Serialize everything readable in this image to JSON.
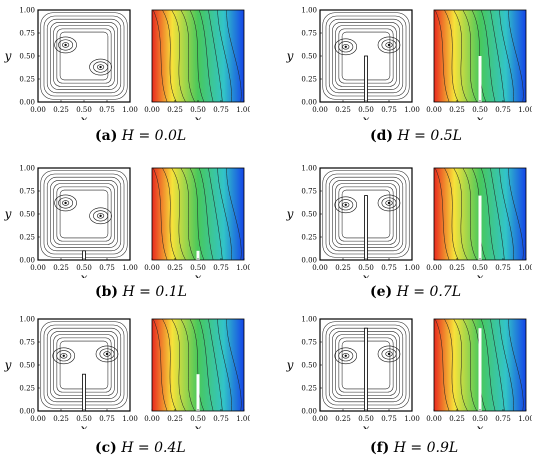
{
  "ticks": [
    "0.00",
    "0.25",
    "0.50",
    "0.75",
    "1.00"
  ],
  "xlabel": "x",
  "ylabel": "y",
  "panels": [
    {
      "id": "a",
      "label": "(a)",
      "var": "H",
      "eq": "=",
      "value": "0.0L",
      "baffle": 0.0
    },
    {
      "id": "b",
      "label": "(b)",
      "var": "H",
      "eq": "=",
      "value": "0.1L",
      "baffle": 0.1
    },
    {
      "id": "c",
      "label": "(c)",
      "var": "H",
      "eq": "=",
      "value": "0.4L",
      "baffle": 0.4
    },
    {
      "id": "d",
      "label": "(d)",
      "var": "H",
      "eq": "=",
      "value": "0.5L",
      "baffle": 0.5
    },
    {
      "id": "e",
      "label": "(e)",
      "var": "H",
      "eq": "=",
      "value": "0.7L",
      "baffle": 0.7
    },
    {
      "id": "f",
      "label": "(f)",
      "var": "H",
      "eq": "=",
      "value": "0.9L",
      "baffle": 0.9
    }
  ],
  "colors": {
    "hot": "#e8281e",
    "warm": "#f7e23a",
    "mid": "#48c85c",
    "cool": "#32c4c8",
    "cold": "#1444e8",
    "axis": "#000000"
  }
}
